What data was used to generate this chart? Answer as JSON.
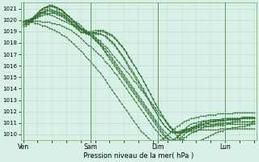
{
  "xlabel": "Pression niveau de la mer( hPa )",
  "ylim": [
    1009.5,
    1021.5
  ],
  "yticks": [
    1010,
    1011,
    1012,
    1013,
    1014,
    1015,
    1016,
    1017,
    1018,
    1019,
    1020,
    1021
  ],
  "bg_color": "#d8f0e8",
  "grid_color": "#b8d8c8",
  "line_color": "#2d6e2d",
  "xtick_labels": [
    "Ven",
    "Sam",
    "Dim",
    "Lun"
  ],
  "xtick_positions": [
    0,
    28,
    56,
    84
  ],
  "xlim": [
    -1,
    97
  ],
  "n_points": 97,
  "series": [
    [
      1019.8,
      1019.9,
      1019.9,
      1020.0,
      1020.0,
      1020.1,
      1020.2,
      1020.3,
      1020.4,
      1020.5,
      1020.5,
      1020.5,
      1020.4,
      1020.3,
      1020.2,
      1020.1,
      1020.0,
      1019.9,
      1019.8,
      1019.7,
      1019.6,
      1019.5,
      1019.4,
      1019.3,
      1019.2,
      1019.1,
      1019.0,
      1018.9,
      1018.8,
      1018.7,
      1018.5,
      1018.3,
      1018.2,
      1017.9,
      1017.7,
      1017.6,
      1017.3,
      1017.0,
      1016.8,
      1016.5,
      1016.3,
      1016.0,
      1015.8,
      1015.5,
      1015.3,
      1015.0,
      1014.7,
      1014.5,
      1014.2,
      1013.9,
      1013.7,
      1013.4,
      1013.1,
      1012.8,
      1012.6,
      1012.3,
      1012.0,
      1011.7,
      1011.5,
      1011.2,
      1010.9,
      1010.6,
      1010.4,
      1010.1,
      1009.9,
      1009.7,
      1009.6,
      1009.5,
      1009.4,
      1009.3,
      1009.3,
      1009.3,
      1009.3,
      1009.4,
      1009.5,
      1009.6,
      1009.7,
      1009.8,
      1009.9,
      1010.0,
      1010.1,
      1010.2,
      1010.3,
      1010.3,
      1010.4,
      1010.5,
      1010.5,
      1010.6,
      1010.6,
      1010.6,
      1010.7,
      1010.7,
      1010.7,
      1010.8,
      1010.8,
      1010.9,
      1010.9
    ],
    [
      1019.9,
      1020.0,
      1020.0,
      1020.1,
      1020.1,
      1020.2,
      1020.3,
      1020.4,
      1020.6,
      1020.7,
      1020.8,
      1020.8,
      1020.7,
      1020.6,
      1020.5,
      1020.4,
      1020.3,
      1020.2,
      1020.0,
      1019.9,
      1019.8,
      1019.6,
      1019.5,
      1019.4,
      1019.2,
      1019.1,
      1019.0,
      1018.8,
      1018.7,
      1018.6,
      1018.4,
      1018.2,
      1018.0,
      1017.7,
      1017.5,
      1017.3,
      1017.0,
      1016.7,
      1016.4,
      1016.1,
      1015.8,
      1015.5,
      1015.2,
      1014.9,
      1014.6,
      1014.3,
      1014.0,
      1013.7,
      1013.4,
      1013.1,
      1012.8,
      1012.5,
      1012.2,
      1011.9,
      1011.6,
      1011.3,
      1011.0,
      1010.7,
      1010.4,
      1010.2,
      1010.0,
      1009.8,
      1009.6,
      1009.5,
      1009.4,
      1009.5,
      1009.6,
      1009.7,
      1009.8,
      1010.0,
      1010.1,
      1010.2,
      1010.3,
      1010.4,
      1010.5,
      1010.6,
      1010.7,
      1010.7,
      1010.8,
      1010.8,
      1010.9,
      1010.9,
      1010.9,
      1010.9,
      1011.0,
      1011.0,
      1011.0,
      1011.0,
      1011.1,
      1011.1,
      1011.1,
      1011.1,
      1011.1,
      1011.1,
      1011.1,
      1011.1,
      1011.2
    ],
    [
      1019.7,
      1019.8,
      1019.9,
      1020.0,
      1020.1,
      1020.3,
      1020.5,
      1020.7,
      1020.9,
      1021.0,
      1021.1,
      1021.2,
      1021.2,
      1021.1,
      1021.0,
      1020.9,
      1020.8,
      1020.6,
      1020.5,
      1020.3,
      1020.1,
      1019.9,
      1019.7,
      1019.5,
      1019.3,
      1019.2,
      1019.0,
      1018.8,
      1018.7,
      1018.5,
      1018.3,
      1018.1,
      1017.9,
      1017.6,
      1017.3,
      1017.0,
      1016.8,
      1016.5,
      1016.2,
      1015.9,
      1015.6,
      1015.3,
      1015.0,
      1014.7,
      1014.4,
      1014.1,
      1013.8,
      1013.5,
      1013.2,
      1012.9,
      1012.6,
      1012.3,
      1012.0,
      1011.7,
      1011.4,
      1011.1,
      1010.8,
      1010.5,
      1010.2,
      1009.9,
      1009.7,
      1009.5,
      1009.4,
      1009.4,
      1009.5,
      1009.6,
      1009.8,
      1010.0,
      1010.2,
      1010.3,
      1010.4,
      1010.5,
      1010.6,
      1010.7,
      1010.8,
      1010.9,
      1011.0,
      1011.0,
      1011.1,
      1011.1,
      1011.2,
      1011.2,
      1011.2,
      1011.2,
      1011.2,
      1011.3,
      1011.3,
      1011.3,
      1011.3,
      1011.3,
      1011.3,
      1011.4,
      1011.4,
      1011.4,
      1011.4,
      1011.4,
      1011.4
    ],
    [
      1019.8,
      1019.9,
      1020.0,
      1020.1,
      1020.2,
      1020.4,
      1020.6,
      1020.8,
      1021.0,
      1021.1,
      1021.2,
      1021.3,
      1021.3,
      1021.2,
      1021.1,
      1021.0,
      1020.9,
      1020.7,
      1020.5,
      1020.3,
      1020.1,
      1019.9,
      1019.7,
      1019.5,
      1019.3,
      1019.1,
      1018.9,
      1018.8,
      1018.6,
      1018.4,
      1018.2,
      1018.0,
      1017.8,
      1017.5,
      1017.2,
      1016.9,
      1016.6,
      1016.3,
      1016.0,
      1015.7,
      1015.4,
      1015.1,
      1014.8,
      1014.5,
      1014.2,
      1013.9,
      1013.6,
      1013.3,
      1013.0,
      1012.7,
      1012.4,
      1012.1,
      1011.8,
      1011.5,
      1011.2,
      1010.9,
      1010.6,
      1010.3,
      1010.0,
      1009.8,
      1009.6,
      1009.5,
      1009.5,
      1009.6,
      1009.7,
      1009.9,
      1010.1,
      1010.3,
      1010.4,
      1010.5,
      1010.6,
      1010.7,
      1010.8,
      1010.9,
      1011.0,
      1011.1,
      1011.1,
      1011.2,
      1011.2,
      1011.2,
      1011.3,
      1011.3,
      1011.3,
      1011.3,
      1011.3,
      1011.4,
      1011.4,
      1011.4,
      1011.4,
      1011.4,
      1011.4,
      1011.4,
      1011.5,
      1011.5,
      1011.5,
      1011.5,
      1011.5
    ],
    [
      1019.6,
      1019.7,
      1019.8,
      1020.0,
      1020.2,
      1020.4,
      1020.6,
      1020.8,
      1021.0,
      1021.1,
      1021.1,
      1021.2,
      1021.2,
      1021.2,
      1021.1,
      1021.0,
      1020.9,
      1020.7,
      1020.5,
      1020.3,
      1020.1,
      1019.9,
      1019.8,
      1019.7,
      1019.5,
      1019.3,
      1019.1,
      1018.9,
      1018.9,
      1018.9,
      1018.9,
      1018.8,
      1018.8,
      1018.7,
      1018.6,
      1018.4,
      1018.2,
      1018.0,
      1017.8,
      1017.5,
      1017.2,
      1016.9,
      1016.6,
      1016.2,
      1015.8,
      1015.5,
      1015.2,
      1014.8,
      1014.5,
      1014.1,
      1013.8,
      1013.4,
      1013.1,
      1012.7,
      1012.3,
      1012.0,
      1011.6,
      1011.3,
      1011.0,
      1010.7,
      1010.5,
      1010.3,
      1010.2,
      1010.2,
      1010.2,
      1010.3,
      1010.4,
      1010.4,
      1010.5,
      1010.5,
      1010.6,
      1010.6,
      1010.7,
      1010.7,
      1010.8,
      1010.8,
      1010.8,
      1010.9,
      1010.9,
      1010.9,
      1010.9,
      1011.0,
      1011.0,
      1011.0,
      1011.0,
      1011.0,
      1011.0,
      1011.1,
      1011.1,
      1011.1,
      1011.1,
      1011.1,
      1011.1,
      1011.1,
      1011.1,
      1011.1,
      1011.1
    ],
    [
      1019.5,
      1019.6,
      1019.7,
      1019.8,
      1020.0,
      1020.2,
      1020.4,
      1020.6,
      1020.7,
      1020.8,
      1020.9,
      1021.0,
      1020.9,
      1020.8,
      1020.8,
      1020.7,
      1020.6,
      1020.5,
      1020.3,
      1020.1,
      1019.9,
      1019.8,
      1019.6,
      1019.4,
      1019.2,
      1019.0,
      1018.8,
      1018.8,
      1018.8,
      1018.8,
      1018.8,
      1018.8,
      1018.8,
      1018.7,
      1018.6,
      1018.5,
      1018.3,
      1018.1,
      1017.9,
      1017.6,
      1017.3,
      1017.0,
      1016.7,
      1016.4,
      1016.0,
      1015.7,
      1015.4,
      1015.0,
      1014.7,
      1014.3,
      1014.0,
      1013.6,
      1013.2,
      1012.8,
      1012.4,
      1012.1,
      1011.7,
      1011.3,
      1011.0,
      1010.7,
      1010.5,
      1010.3,
      1010.2,
      1010.1,
      1010.1,
      1010.1,
      1010.2,
      1010.2,
      1010.2,
      1010.3,
      1010.3,
      1010.3,
      1010.3,
      1010.4,
      1010.4,
      1010.4,
      1010.4,
      1010.4,
      1010.4,
      1010.4,
      1010.4,
      1010.4,
      1010.5,
      1010.5,
      1010.5,
      1010.5,
      1010.5,
      1010.5,
      1010.5,
      1010.5,
      1010.5,
      1010.5,
      1010.5,
      1010.5,
      1010.5,
      1010.5,
      1010.5
    ],
    [
      1019.6,
      1019.7,
      1019.8,
      1019.9,
      1020.1,
      1020.3,
      1020.4,
      1020.6,
      1020.7,
      1020.7,
      1020.8,
      1020.8,
      1020.8,
      1020.7,
      1020.7,
      1020.6,
      1020.5,
      1020.4,
      1020.2,
      1020.0,
      1019.8,
      1019.6,
      1019.4,
      1019.2,
      1019.0,
      1018.9,
      1018.9,
      1018.9,
      1018.9,
      1018.9,
      1018.9,
      1019.0,
      1019.0,
      1019.0,
      1018.9,
      1018.8,
      1018.7,
      1018.6,
      1018.4,
      1018.2,
      1017.9,
      1017.7,
      1017.4,
      1017.1,
      1016.7,
      1016.4,
      1016.1,
      1015.8,
      1015.4,
      1015.1,
      1014.7,
      1014.3,
      1013.9,
      1013.5,
      1013.1,
      1012.7,
      1012.3,
      1012.0,
      1011.6,
      1011.3,
      1011.0,
      1010.7,
      1010.5,
      1010.3,
      1010.2,
      1010.2,
      1010.3,
      1010.3,
      1010.4,
      1010.4,
      1010.5,
      1010.5,
      1010.5,
      1010.6,
      1010.6,
      1010.6,
      1010.7,
      1010.7,
      1010.7,
      1010.7,
      1010.8,
      1010.8,
      1010.8,
      1010.8,
      1010.8,
      1010.9,
      1010.9,
      1010.9,
      1010.9,
      1010.9,
      1010.9,
      1010.9,
      1010.9,
      1010.9,
      1010.9,
      1011.0,
      1011.0
    ],
    [
      1019.4,
      1019.5,
      1019.6,
      1019.8,
      1020.0,
      1020.2,
      1020.3,
      1020.5,
      1020.6,
      1020.6,
      1020.6,
      1020.6,
      1020.6,
      1020.6,
      1020.6,
      1020.5,
      1020.4,
      1020.3,
      1020.1,
      1019.9,
      1019.7,
      1019.5,
      1019.3,
      1019.1,
      1018.9,
      1018.9,
      1018.9,
      1019.0,
      1019.0,
      1019.0,
      1019.1,
      1019.1,
      1019.1,
      1019.1,
      1019.0,
      1018.9,
      1018.8,
      1018.7,
      1018.5,
      1018.3,
      1018.0,
      1017.8,
      1017.5,
      1017.2,
      1016.8,
      1016.5,
      1016.1,
      1015.8,
      1015.4,
      1015.1,
      1014.7,
      1014.3,
      1013.9,
      1013.5,
      1013.1,
      1012.7,
      1012.3,
      1012.0,
      1011.6,
      1011.3,
      1011.0,
      1010.7,
      1010.5,
      1010.3,
      1010.2,
      1010.2,
      1010.2,
      1010.3,
      1010.3,
      1010.4,
      1010.5,
      1010.6,
      1010.7,
      1010.8,
      1010.9,
      1010.9,
      1011.0,
      1011.0,
      1011.1,
      1011.1,
      1011.1,
      1011.2,
      1011.2,
      1011.2,
      1011.2,
      1011.3,
      1011.3,
      1011.3,
      1011.3,
      1011.3,
      1011.3,
      1011.4,
      1011.4,
      1011.4,
      1011.4,
      1011.4,
      1011.4
    ],
    [
      1019.9,
      1019.9,
      1019.9,
      1019.9,
      1019.9,
      1019.9,
      1019.9,
      1019.9,
      1019.8,
      1019.8,
      1019.8,
      1019.8,
      1019.7,
      1019.7,
      1019.6,
      1019.6,
      1019.5,
      1019.4,
      1019.3,
      1019.2,
      1019.1,
      1018.9,
      1018.8,
      1018.6,
      1018.4,
      1018.2,
      1018.0,
      1017.8,
      1017.7,
      1017.5,
      1017.3,
      1017.1,
      1016.9,
      1016.7,
      1016.4,
      1016.2,
      1016.0,
      1015.7,
      1015.4,
      1015.2,
      1014.9,
      1014.6,
      1014.3,
      1014.0,
      1013.7,
      1013.4,
      1013.1,
      1012.8,
      1012.5,
      1012.2,
      1011.9,
      1011.6,
      1011.3,
      1011.0,
      1010.7,
      1010.4,
      1010.2,
      1009.9,
      1009.7,
      1009.5,
      1009.4,
      1009.4,
      1009.5,
      1009.6,
      1009.8,
      1010.0,
      1010.2,
      1010.4,
      1010.6,
      1010.8,
      1010.9,
      1011.0,
      1011.0,
      1011.1,
      1011.1,
      1011.2,
      1011.2,
      1011.2,
      1011.3,
      1011.3,
      1011.3,
      1011.3,
      1011.3,
      1011.4,
      1011.4,
      1011.4,
      1011.4,
      1011.4,
      1011.4,
      1011.4,
      1011.4,
      1011.5,
      1011.5,
      1011.5,
      1011.5,
      1011.5,
      1011.5
    ],
    [
      1019.9,
      1019.9,
      1019.9,
      1019.8,
      1019.8,
      1019.7,
      1019.7,
      1019.6,
      1019.5,
      1019.5,
      1019.4,
      1019.3,
      1019.2,
      1019.1,
      1019.0,
      1018.9,
      1018.7,
      1018.6,
      1018.5,
      1018.3,
      1018.1,
      1017.9,
      1017.7,
      1017.5,
      1017.3,
      1017.1,
      1016.8,
      1016.6,
      1016.4,
      1016.1,
      1015.9,
      1015.6,
      1015.4,
      1015.1,
      1014.8,
      1014.5,
      1014.2,
      1013.9,
      1013.6,
      1013.3,
      1013.0,
      1012.7,
      1012.4,
      1012.1,
      1011.8,
      1011.5,
      1011.2,
      1010.9,
      1010.6,
      1010.3,
      1010.1,
      1009.9,
      1009.7,
      1009.5,
      1009.4,
      1009.4,
      1009.4,
      1009.5,
      1009.6,
      1009.7,
      1009.9,
      1010.1,
      1010.3,
      1010.5,
      1010.7,
      1010.8,
      1011.0,
      1011.1,
      1011.2,
      1011.3,
      1011.4,
      1011.4,
      1011.5,
      1011.5,
      1011.6,
      1011.6,
      1011.6,
      1011.7,
      1011.7,
      1011.7,
      1011.7,
      1011.8,
      1011.8,
      1011.8,
      1011.8,
      1011.8,
      1011.8,
      1011.8,
      1011.9,
      1011.9,
      1011.9,
      1011.9,
      1011.9,
      1011.9,
      1011.9,
      1011.9,
      1011.9
    ]
  ]
}
